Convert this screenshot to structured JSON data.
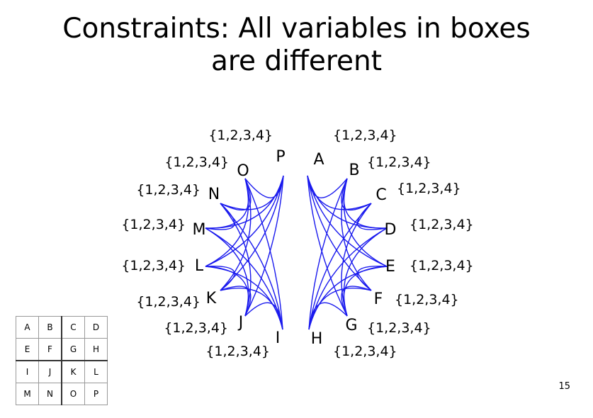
{
  "title_line1": "Constraints: All variables in boxes",
  "title_line2": "are different",
  "page_number": "15",
  "edge_color": "#1a1aee",
  "domain_label": "{1,2,3,4}",
  "variables": [
    "A",
    "B",
    "C",
    "D",
    "E",
    "F",
    "G",
    "H",
    "I",
    "J",
    "K",
    "L",
    "M",
    "N",
    "O",
    "P"
  ],
  "grid": [
    [
      "A",
      "B",
      "C",
      "D"
    ],
    [
      "E",
      "F",
      "G",
      "H"
    ],
    [
      "I",
      "J",
      "K",
      "L"
    ],
    [
      "M",
      "N",
      "O",
      "P"
    ]
  ],
  "edges": [
    [
      "A",
      "B"
    ],
    [
      "A",
      "E"
    ],
    [
      "A",
      "F"
    ],
    [
      "A",
      "C"
    ],
    [
      "A",
      "D"
    ],
    [
      "A",
      "G"
    ],
    [
      "B",
      "E"
    ],
    [
      "B",
      "F"
    ],
    [
      "B",
      "C"
    ],
    [
      "B",
      "D"
    ],
    [
      "B",
      "H"
    ],
    [
      "C",
      "D"
    ],
    [
      "C",
      "G"
    ],
    [
      "C",
      "H"
    ],
    [
      "D",
      "G"
    ],
    [
      "D",
      "H"
    ],
    [
      "E",
      "F"
    ],
    [
      "E",
      "G"
    ],
    [
      "E",
      "H"
    ],
    [
      "F",
      "G"
    ],
    [
      "F",
      "H"
    ],
    [
      "G",
      "H"
    ],
    [
      "I",
      "J"
    ],
    [
      "I",
      "M"
    ],
    [
      "I",
      "N"
    ],
    [
      "I",
      "K"
    ],
    [
      "I",
      "L"
    ],
    [
      "I",
      "O"
    ],
    [
      "J",
      "M"
    ],
    [
      "J",
      "N"
    ],
    [
      "J",
      "K"
    ],
    [
      "J",
      "L"
    ],
    [
      "J",
      "P"
    ],
    [
      "K",
      "L"
    ],
    [
      "K",
      "O"
    ],
    [
      "K",
      "P"
    ],
    [
      "L",
      "O"
    ],
    [
      "L",
      "P"
    ],
    [
      "M",
      "N"
    ],
    [
      "M",
      "O"
    ],
    [
      "M",
      "P"
    ],
    [
      "N",
      "O"
    ],
    [
      "N",
      "P"
    ],
    [
      "O",
      "P"
    ]
  ]
}
